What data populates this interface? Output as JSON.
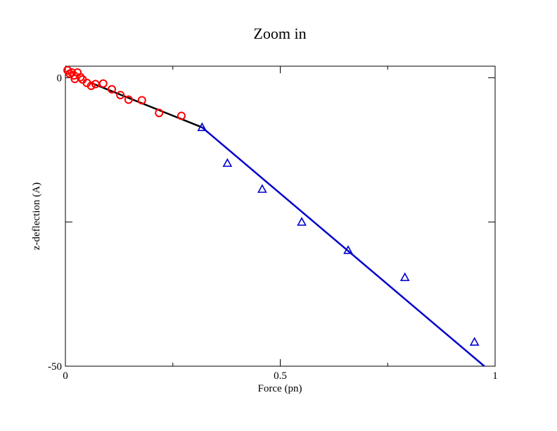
{
  "chart_data": {
    "type": "scatter",
    "title": "Zoom in",
    "xlabel": "Force (pn)",
    "ylabel": "z-deflection (A)",
    "xlim": [
      0,
      1
    ],
    "ylim": [
      -50,
      2
    ],
    "x_ticks": [
      {
        "value": 0,
        "label": "0"
      },
      {
        "value": 0.5,
        "label": "0.5"
      },
      {
        "value": 1,
        "label": "1"
      }
    ],
    "x_minor_ticks": [
      0.25,
      0.75
    ],
    "y_ticks": [
      {
        "value": 0,
        "label": "0"
      },
      {
        "value": -25,
        "label": ""
      },
      {
        "value": -50,
        "label": "-50"
      }
    ],
    "grid": false,
    "legend": "none",
    "series": [
      {
        "marker": "circle",
        "color": "#ff0000",
        "points": [
          {
            "x": 0.005,
            "y": 1.3
          },
          {
            "x": 0.01,
            "y": 0.7
          },
          {
            "x": 0.015,
            "y": 0.9
          },
          {
            "x": 0.02,
            "y": 0.4
          },
          {
            "x": 0.022,
            "y": -0.2
          },
          {
            "x": 0.028,
            "y": 0.9
          },
          {
            "x": 0.035,
            "y": 0.1
          },
          {
            "x": 0.04,
            "y": -0.3
          },
          {
            "x": 0.05,
            "y": -0.9
          },
          {
            "x": 0.06,
            "y": -1.4
          },
          {
            "x": 0.07,
            "y": -1.1
          },
          {
            "x": 0.088,
            "y": -1.0
          },
          {
            "x": 0.108,
            "y": -2.0
          },
          {
            "x": 0.128,
            "y": -3.0
          },
          {
            "x": 0.147,
            "y": -3.8
          },
          {
            "x": 0.178,
            "y": -3.9
          },
          {
            "x": 0.218,
            "y": -6.1
          },
          {
            "x": 0.27,
            "y": -6.6
          }
        ]
      },
      {
        "marker": "triangle",
        "color": "#0000cc",
        "points": [
          {
            "x": 0.318,
            "y": -8.6
          },
          {
            "x": 0.377,
            "y": -14.8
          },
          {
            "x": 0.458,
            "y": -19.3
          },
          {
            "x": 0.55,
            "y": -25.0
          },
          {
            "x": 0.658,
            "y": -29.9
          },
          {
            "x": 0.79,
            "y": -34.6
          },
          {
            "x": 0.952,
            "y": -45.8
          }
        ]
      }
    ],
    "fit_lines": [
      {
        "color": "#000000",
        "from": {
          "x": 0.06,
          "y": -0.9
        },
        "to": {
          "x": 0.318,
          "y": -8.6
        }
      },
      {
        "color": "#0000cc",
        "from": {
          "x": 0.318,
          "y": -8.6
        },
        "to": {
          "x": 0.975,
          "y": -50
        }
      }
    ]
  }
}
